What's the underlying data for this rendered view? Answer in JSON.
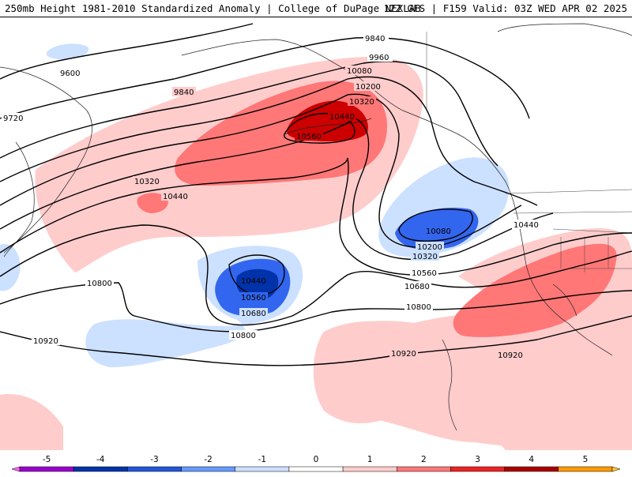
{
  "header": {
    "title_left": "250mb Height 1981-2010 Standardized Anomaly | College of DuPage NEXLAB",
    "title_right": "12Z GFS | F159 Valid: 03Z WED APR 02 2025"
  },
  "contour_labels": [
    "9600",
    "9720",
    "9840",
    "9840",
    "9960",
    "10080",
    "10200",
    "10320",
    "10440",
    "10560",
    "10320",
    "10440",
    "10440",
    "10560",
    "10680",
    "10800",
    "10800",
    "10920",
    "10920",
    "10920",
    "10080",
    "10200",
    "10320",
    "10560",
    "10680",
    "10800",
    "10440"
  ],
  "colorbar": {
    "ticks": [
      "-5",
      "-4",
      "-3",
      "-2",
      "-1",
      "0",
      "1",
      "2",
      "3",
      "4",
      "5"
    ],
    "colors": [
      "#ff66ff",
      "#9900cc",
      "#0033aa",
      "#2255dd",
      "#6699ff",
      "#cce0ff",
      "#ffffff",
      "#ffcccc",
      "#ff7777",
      "#ee2222",
      "#aa0000",
      "#ff9900",
      "#ffcc33"
    ]
  }
}
